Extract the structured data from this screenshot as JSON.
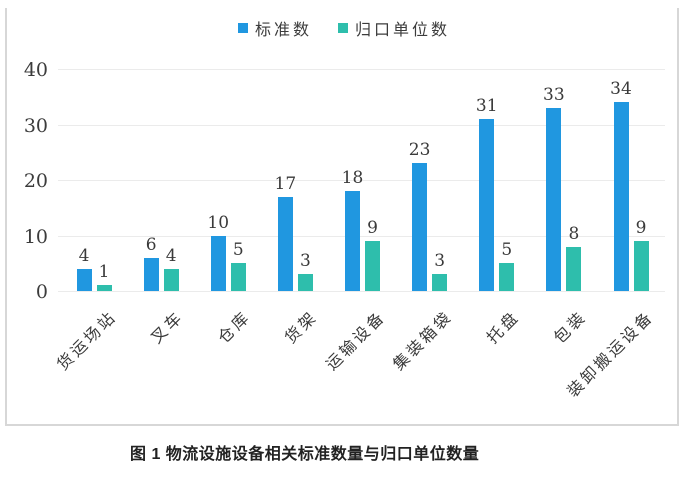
{
  "caption": "图 1 物流设施设备相关标准数量与归口单位数量",
  "colors": {
    "standard_series": "#2097E0",
    "unit_series": "#2EBEAC",
    "grid": "#ebebeb",
    "frame": "#d7d7d7",
    "axis_text": "#3c3c3c"
  },
  "chart_data": {
    "type": "bar",
    "title": "",
    "xlabel": "",
    "ylabel": "",
    "categories": [
      "货运场站",
      "叉车",
      "仓库",
      "货架",
      "运输设备",
      "集装箱袋",
      "托盘",
      "包装",
      "装卸搬运设备"
    ],
    "series": [
      {
        "name": "标准数",
        "color": "#2097E0",
        "values": [
          4,
          6,
          10,
          17,
          18,
          23,
          31,
          33,
          34
        ]
      },
      {
        "name": "归口单位数",
        "color": "#2EBEAC",
        "values": [
          1,
          4,
          5,
          3,
          9,
          3,
          5,
          8,
          9
        ]
      }
    ],
    "ylim": [
      0,
      40
    ],
    "yticks": [
      0,
      10,
      20,
      30,
      40
    ],
    "grid": true,
    "legend_position": "top-center",
    "value_labels": true
  }
}
